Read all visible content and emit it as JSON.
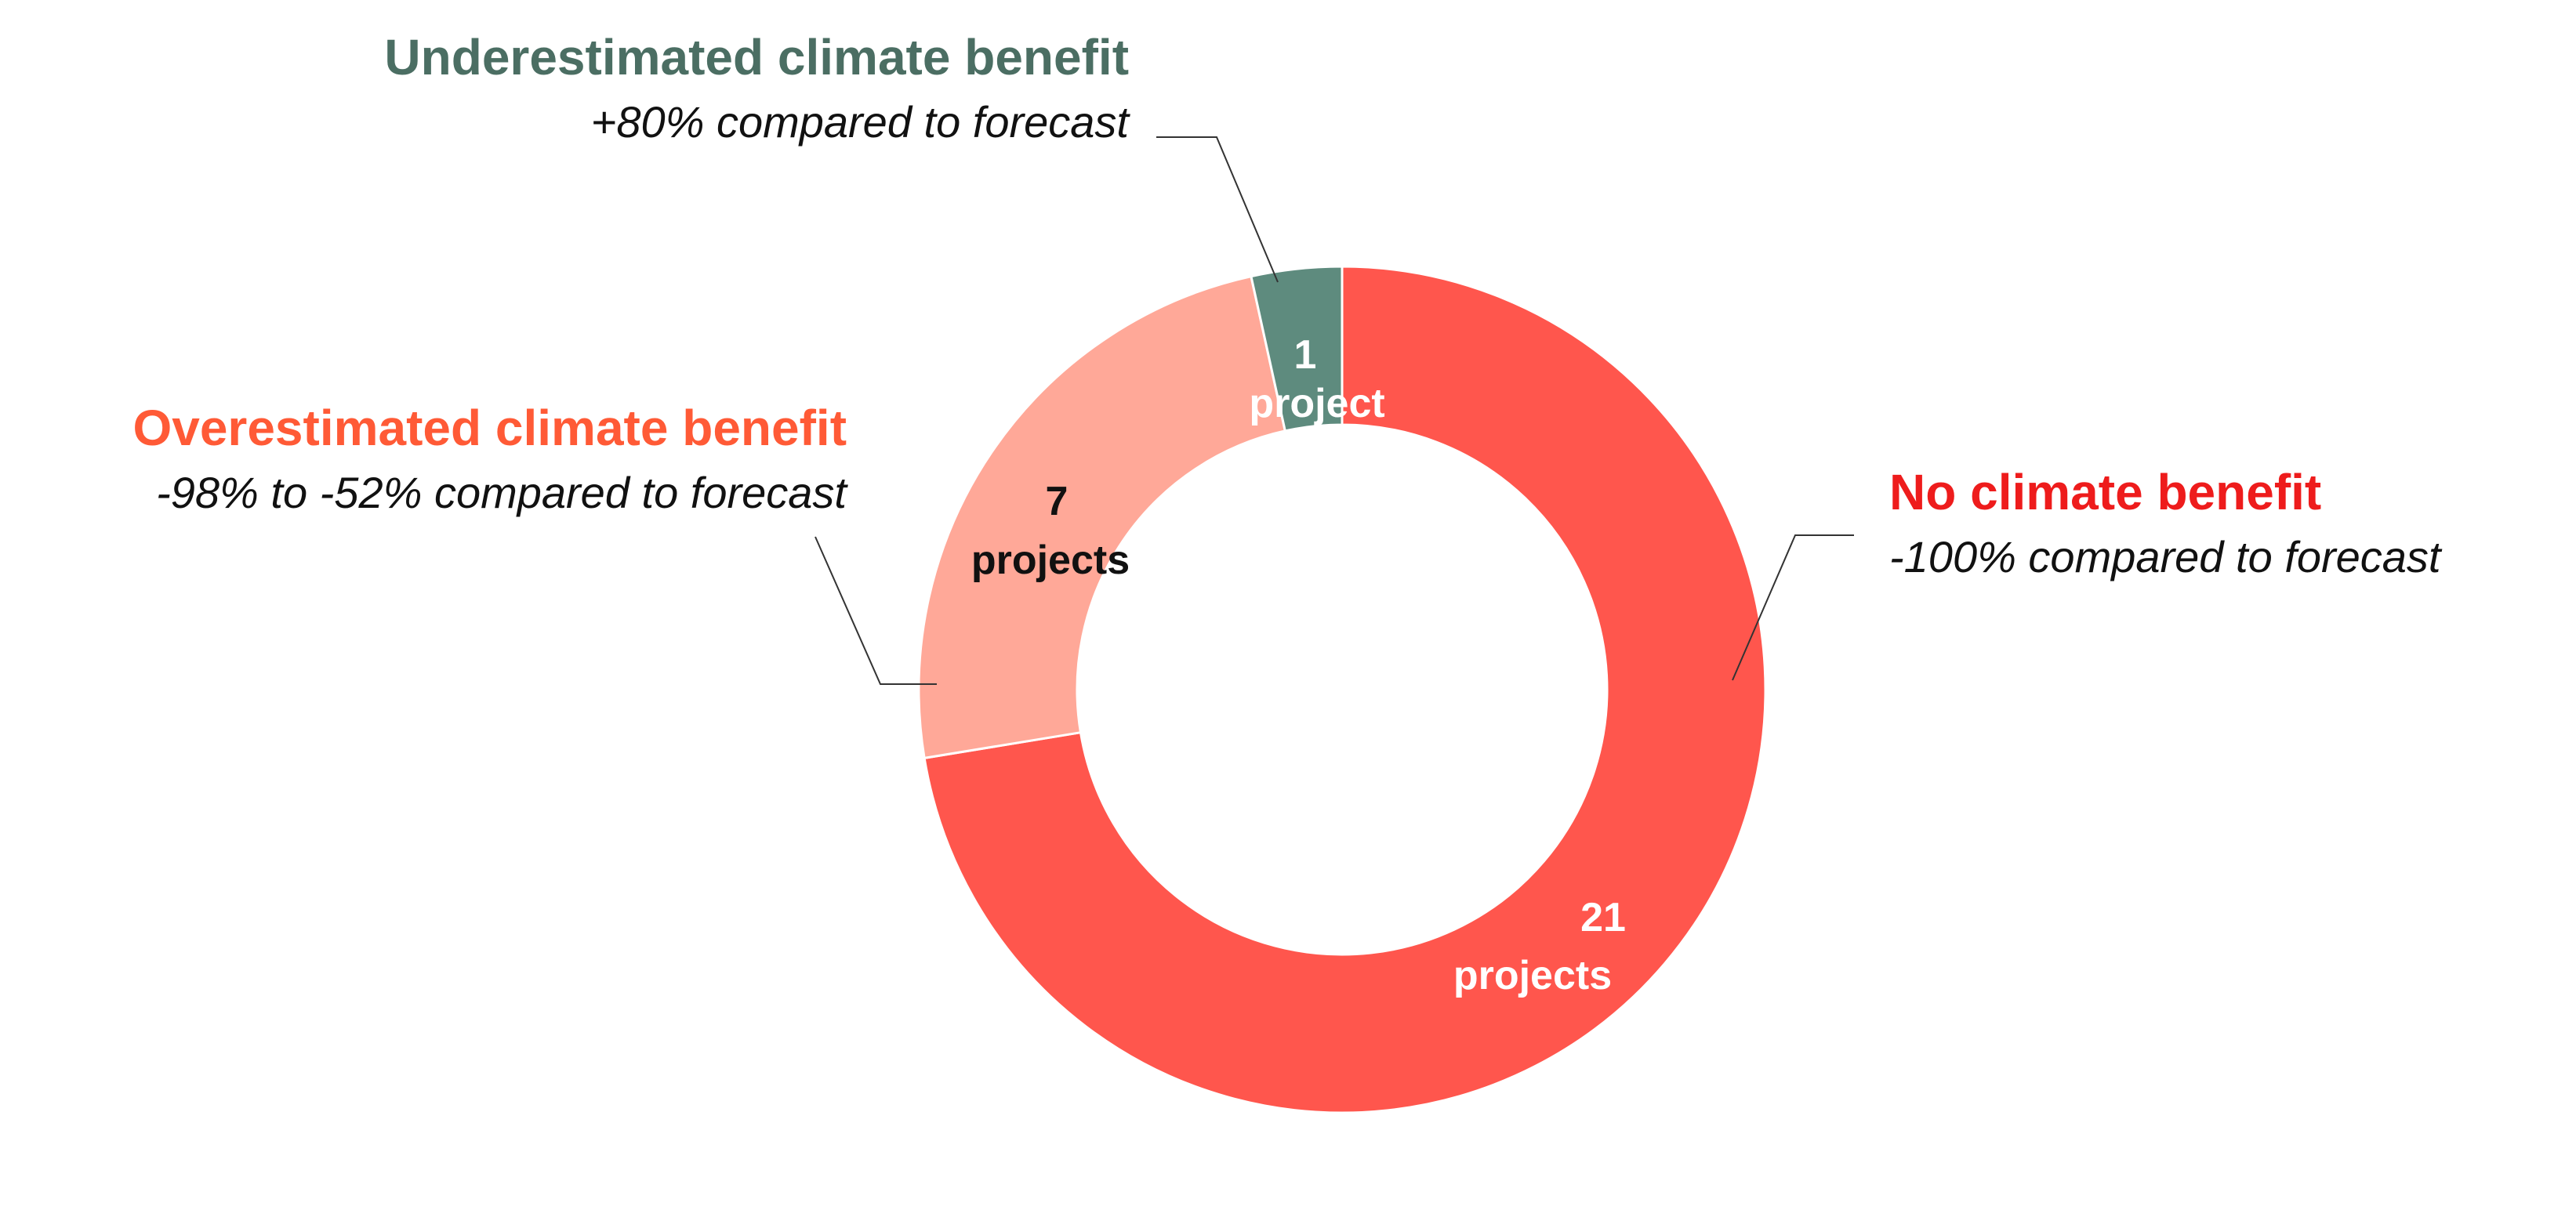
{
  "chart_data": {
    "type": "pie",
    "donut": true,
    "categories": [
      "No climate benefit",
      "Overestimated climate benefit",
      "Underestimated climate benefit"
    ],
    "values": [
      21,
      7,
      1
    ],
    "colors": [
      "#ff564d",
      "#ffa898",
      "#5e8b7e"
    ],
    "value_labels": [
      {
        "count": "21",
        "unit": "projects",
        "color": "#ffffff"
      },
      {
        "count": "7",
        "unit": "projects",
        "color": "#111111"
      },
      {
        "count": "1",
        "unit": "project",
        "color": "#ffffff"
      }
    ],
    "annotations": [
      {
        "title": "No climate benefit",
        "subtitle": "-100% compared to forecast",
        "color": "#ee1c1c"
      },
      {
        "title": "Overestimated climate benefit",
        "subtitle": "-98% to -52% compared to forecast",
        "color": "#ff5a36"
      },
      {
        "title": "Underestimated climate benefit",
        "subtitle": "+80% compared to forecast",
        "color": "#4b6e63"
      }
    ]
  }
}
